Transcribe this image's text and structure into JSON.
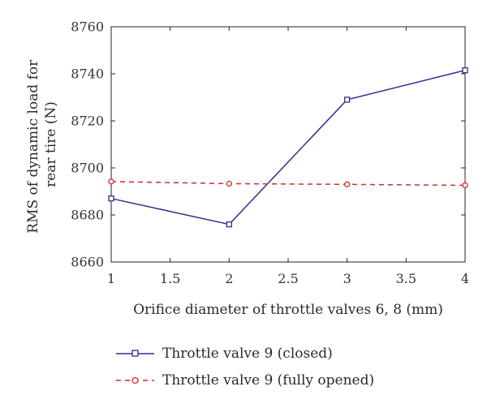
{
  "chart_data": {
    "type": "line",
    "xlabel": "Orifice diameter of throttle valves 6, 8 (mm)",
    "ylabel": "RMS of dynamic load for rear tire (N)",
    "xlim": [
      1,
      4
    ],
    "ylim": [
      8660,
      8760
    ],
    "xticks": [
      "1",
      "1.5",
      "2",
      "2.5",
      "3",
      "3.5",
      "4"
    ],
    "yticks": [
      "8660",
      "8680",
      "8700",
      "8720",
      "8740",
      "8760"
    ],
    "x": [
      1,
      2,
      3,
      4
    ],
    "series": [
      {
        "name": "Throttle valve 9 (closed)",
        "values": [
          8687,
          8676,
          8729,
          8741.5
        ],
        "color": "#2e2e8e",
        "line_style": "solid",
        "marker": "square"
      },
      {
        "name": "Throttle valve 9 (fully opened)",
        "values": [
          8694.2,
          8693.3,
          8693.0,
          8692.6
        ],
        "color": "#d42a2a",
        "line_style": "dashed",
        "marker": "circle"
      }
    ],
    "grid": false,
    "legend_position": "bottom"
  }
}
